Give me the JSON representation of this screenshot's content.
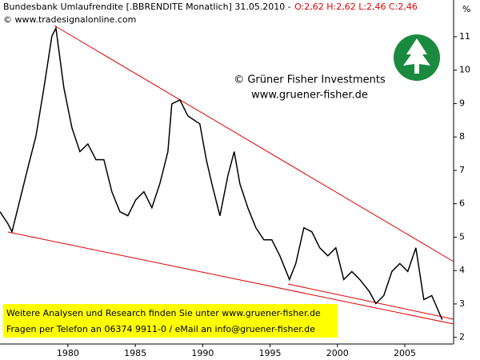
{
  "chart_data": {
    "type": "line",
    "title": "Bundesbank Umlaufrendite [.BBRENDITE  Monatlich] 31.05.2010 -",
    "quote": "O:2,62 H:2,62 L:2,46 C:2,46",
    "source": "© www.tradesignalonline.com",
    "y_label": "%",
    "annotations": [
      "© Grüner Fisher Investments",
      "www.gruener-fisher.de"
    ],
    "banner": [
      "Weitere Analysen und Research finden Sie unter www.gruener-fisher.de",
      "Fragen per Telefon an 06374 9911-0 / eMail an info@gruener-fisher.de"
    ],
    "x": [
      1974.96,
      1975.55,
      1975.85,
      1976.44,
      1977.03,
      1977.63,
      1978.22,
      1978.81,
      1979.11,
      1979.7,
      1980.3,
      1980.89,
      1981.48,
      1982.08,
      1982.67,
      1983.26,
      1983.86,
      1984.45,
      1985.04,
      1985.64,
      1986.23,
      1986.82,
      1987.42,
      1987.71,
      1988.31,
      1988.9,
      1989.79,
      1990.27,
      1990.68,
      1991.28,
      1991.87,
      1992.34,
      1992.76,
      1993.35,
      1993.95,
      1994.54,
      1995.13,
      1995.73,
      1996.44,
      1996.91,
      1997.51,
      1998.1,
      1998.69,
      1999.29,
      1999.88,
      2000.47,
      2001.07,
      2001.66,
      2002.37,
      2002.85,
      2003.44,
      2004.04,
      2004.63,
      2005.22,
      2005.82,
      2006.41,
      2007.0,
      2007.77
    ],
    "series": [
      {
        "name": "Umlaufrendite",
        "color": "#000000",
        "values": [
          5.76,
          5.4,
          5.16,
          6.12,
          7.08,
          8.03,
          9.47,
          11.02,
          11.26,
          9.47,
          8.27,
          7.56,
          7.79,
          7.32,
          7.32,
          6.36,
          5.76,
          5.64,
          6.12,
          6.36,
          5.88,
          6.6,
          7.56,
          8.99,
          9.11,
          8.63,
          8.39,
          7.32,
          6.6,
          5.64,
          6.84,
          7.56,
          6.6,
          5.88,
          5.28,
          4.92,
          4.92,
          4.44,
          3.73,
          4.21,
          5.28,
          5.16,
          4.68,
          4.44,
          4.68,
          3.73,
          3.97,
          3.73,
          3.37,
          3.01,
          3.25,
          3.97,
          4.21,
          3.97,
          4.68,
          3.13,
          3.25,
          2.53
        ]
      }
    ],
    "xlim": [
      1974.96,
      2008.62
    ],
    "xticks": [
      1980,
      1985,
      1990,
      1995,
      2000,
      2005
    ],
    "ylim": [
      1.8,
      11.67
    ],
    "yticks": [
      2,
      3,
      4,
      5,
      6,
      7,
      8,
      9,
      10,
      11
    ]
  }
}
